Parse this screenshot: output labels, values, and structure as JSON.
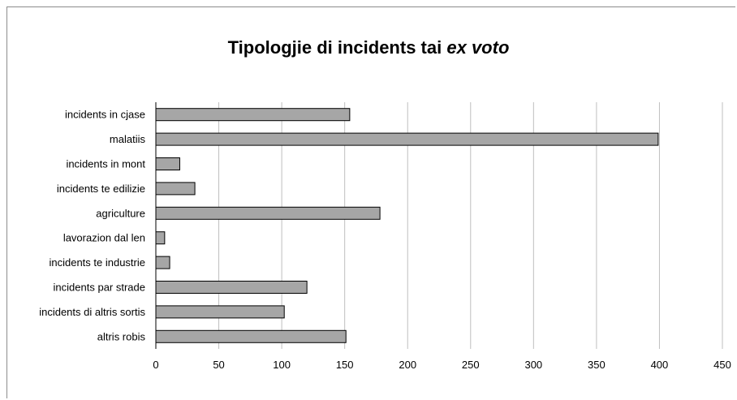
{
  "chart_data": {
    "type": "bar",
    "orientation": "horizontal",
    "title": "Tipologjie di incidents tai",
    "title_italic": "ex voto",
    "categories": [
      "incidents in cjase",
      "malatiis",
      "incidents in mont",
      "incidents te edilizie",
      "agriculture",
      "lavorazion dal len",
      "incidents  te industrie",
      "incidents par strade",
      "incidents di altris sortis",
      "altris robis"
    ],
    "values": [
      154,
      399,
      19,
      31,
      178,
      7,
      11,
      120,
      102,
      151
    ],
    "xlim": [
      0,
      450
    ],
    "xticks": [
      0,
      50,
      100,
      150,
      200,
      250,
      300,
      350,
      400,
      450
    ],
    "grid": true,
    "bar_color": "#a6a6a6",
    "bar_edge_color": "#000000",
    "grid_color": "#bfbfbf"
  }
}
